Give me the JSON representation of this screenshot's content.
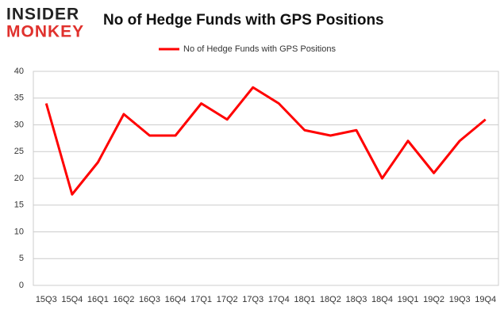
{
  "logo": {
    "line1": "INSIDER",
    "line2": "MONKEY"
  },
  "chart_data": {
    "type": "line",
    "title": "No of Hedge Funds with GPS Positions",
    "categories": [
      "15Q3",
      "15Q4",
      "16Q1",
      "16Q2",
      "16Q3",
      "16Q4",
      "17Q1",
      "17Q2",
      "17Q3",
      "17Q4",
      "18Q1",
      "18Q2",
      "18Q3",
      "18Q4",
      "19Q1",
      "19Q2",
      "19Q3",
      "19Q4"
    ],
    "series": [
      {
        "name": "No of Hedge Funds with GPS Positions",
        "color": "#ff0000",
        "values": [
          34,
          17,
          23,
          32,
          28,
          28,
          34,
          31,
          37,
          34,
          29,
          28,
          29,
          20,
          27,
          21,
          27,
          31
        ]
      }
    ],
    "ylim": [
      0,
      40
    ],
    "yticks": [
      0,
      5,
      10,
      15,
      20,
      25,
      30,
      35,
      40
    ],
    "grid": true,
    "legend": "top"
  }
}
